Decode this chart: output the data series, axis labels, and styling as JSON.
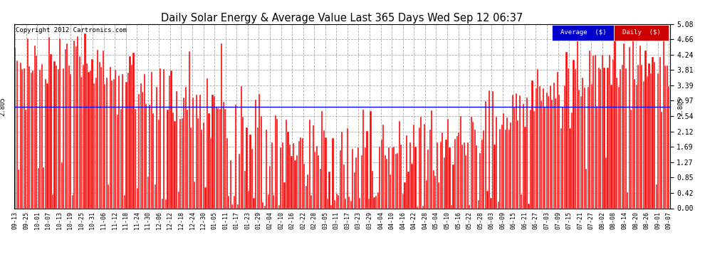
{
  "title": "Daily Solar Energy & Average Value Last 365 Days Wed Sep 12 06:37",
  "copyright": "Copyright 2012 Cartronics.com",
  "average_value": 2.805,
  "average_line_color": "blue",
  "bar_color": "#ff0000",
  "ylim": [
    0.0,
    5.08
  ],
  "yticks": [
    0.0,
    0.42,
    0.85,
    1.27,
    1.69,
    2.12,
    2.54,
    2.97,
    3.39,
    3.81,
    4.24,
    4.66,
    5.08
  ],
  "legend_avg_color": "#0000cc",
  "legend_daily_color": "#cc0000",
  "legend_avg_text": "Average  ($)",
  "legend_daily_text": "Daily  ($)",
  "bg_color": "white",
  "grid_color": "#aaaaaa",
  "x_labels": [
    "09-13",
    "09-25",
    "10-01",
    "10-07",
    "10-13",
    "10-19",
    "10-25",
    "10-31",
    "11-06",
    "11-12",
    "11-18",
    "11-24",
    "11-30",
    "12-06",
    "12-12",
    "12-18",
    "12-24",
    "12-30",
    "01-05",
    "01-11",
    "01-17",
    "01-23",
    "01-29",
    "02-04",
    "02-10",
    "02-16",
    "02-22",
    "02-28",
    "03-05",
    "03-11",
    "03-17",
    "03-23",
    "03-29",
    "04-04",
    "04-10",
    "04-16",
    "04-22",
    "04-28",
    "05-04",
    "05-10",
    "05-16",
    "05-22",
    "05-28",
    "06-03",
    "06-09",
    "06-15",
    "06-21",
    "06-27",
    "07-03",
    "07-09",
    "07-15",
    "07-21",
    "07-27",
    "08-02",
    "08-08",
    "08-14",
    "08-20",
    "08-26",
    "09-01",
    "09-07"
  ],
  "num_bars": 365,
  "seed": 42
}
